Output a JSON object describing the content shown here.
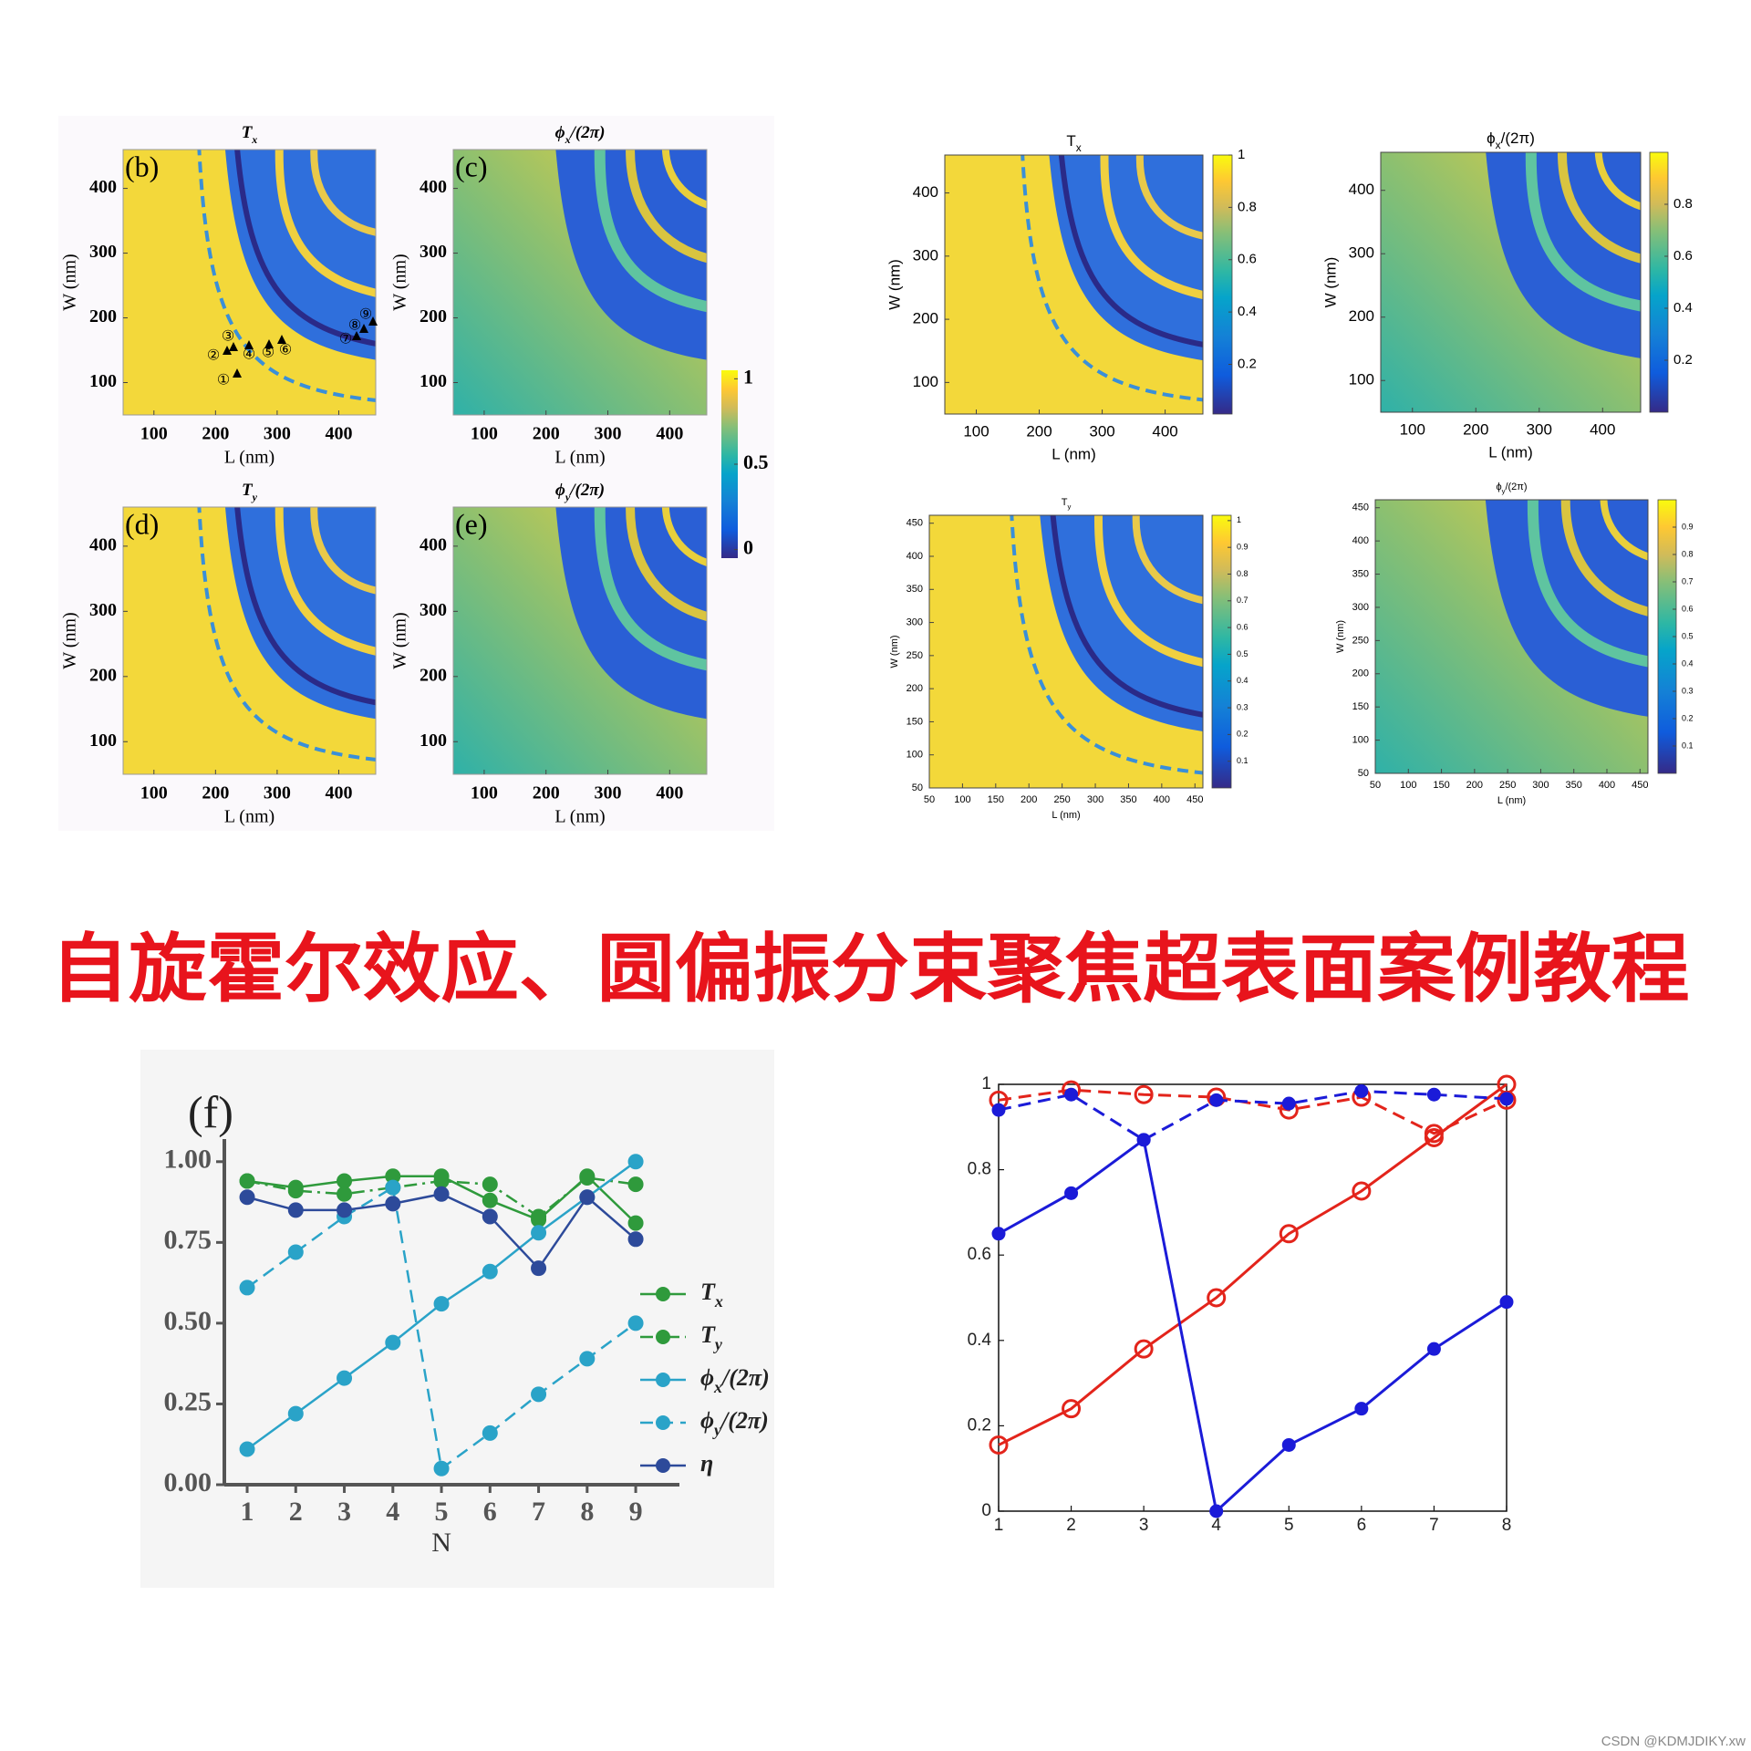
{
  "banner": "自旋霍尔效应、圆偏振分束聚焦超表面案例教程",
  "watermark": "CSDN @KDMJDIKY.xw",
  "chart_data": [
    {
      "type": "heatmap",
      "panel": "(b)",
      "title": "Tx",
      "xlabel": "L (nm)",
      "ylabel": "W (nm)",
      "xlim": [
        50,
        460
      ],
      "ylim": [
        50,
        460
      ],
      "xticks": [
        100,
        200,
        300,
        400
      ],
      "yticks": [
        100,
        200,
        300,
        400
      ],
      "annotations": [
        "①",
        "②",
        "③",
        "④",
        "⑤",
        "⑥",
        "⑦",
        "⑧",
        "⑨"
      ]
    },
    {
      "type": "heatmap",
      "panel": "(c)",
      "title": "ϕx/(2π)",
      "xlabel": "L (nm)",
      "ylabel": "W (nm)",
      "xlim": [
        50,
        460
      ],
      "ylim": [
        50,
        460
      ],
      "xticks": [
        100,
        200,
        300,
        400
      ],
      "yticks": [
        100,
        200,
        300,
        400
      ],
      "colorbar": {
        "colormap": "parula",
        "clim": [
          -0.05,
          1.05
        ],
        "ticks": [
          0,
          0.5,
          1
        ]
      }
    },
    {
      "type": "heatmap",
      "panel": "(d)",
      "title": "Ty",
      "xlabel": "L (nm)",
      "ylabel": "W (nm)",
      "xlim": [
        50,
        460
      ],
      "ylim": [
        50,
        460
      ],
      "xticks": [
        100,
        200,
        300,
        400
      ],
      "yticks": [
        100,
        200,
        300,
        400
      ]
    },
    {
      "type": "heatmap",
      "panel": "(e)",
      "title": "ϕy/(2π)",
      "xlabel": "L (nm)",
      "ylabel": "W (nm)",
      "xlim": [
        50,
        460
      ],
      "ylim": [
        50,
        460
      ],
      "xticks": [
        100,
        200,
        300,
        400
      ],
      "yticks": [
        100,
        200,
        300,
        400
      ]
    },
    {
      "type": "heatmap",
      "title": "Tx",
      "xlabel": "L (nm)",
      "ylabel": "W (nm)",
      "xlim": [
        50,
        460
      ],
      "ylim": [
        50,
        460
      ],
      "xticks": [
        100,
        200,
        300,
        400
      ],
      "yticks": [
        100,
        200,
        300,
        400
      ],
      "colorbar": {
        "colormap": "parula",
        "clim": [
          0.01,
          1
        ],
        "ticks": [
          0.2,
          0.4,
          0.6,
          0.8,
          1
        ]
      }
    },
    {
      "type": "heatmap",
      "title": "ϕx/(2π)",
      "xlabel": "L (nm)",
      "ylabel": "W (nm)",
      "xlim": [
        50,
        460
      ],
      "ylim": [
        50,
        460
      ],
      "xticks": [
        100,
        200,
        300,
        400
      ],
      "yticks": [
        100,
        200,
        300,
        400
      ],
      "colorbar": {
        "colormap": "parula",
        "clim": [
          0,
          1
        ],
        "ticks": [
          0.2,
          0.4,
          0.6,
          0.8
        ]
      }
    },
    {
      "type": "heatmap",
      "title": "Ty",
      "xlabel": "L (nm)",
      "ylabel": "W (nm)",
      "xlim": [
        50,
        462
      ],
      "ylim": [
        50,
        462
      ],
      "xticks": [
        50,
        100,
        150,
        200,
        250,
        300,
        350,
        400,
        450
      ],
      "yticks": [
        50,
        100,
        150,
        200,
        250,
        300,
        350,
        400,
        450
      ],
      "colorbar": {
        "colormap": "parula",
        "clim": [
          0,
          1.02
        ],
        "ticks": [
          0.1,
          0.2,
          0.3,
          0.4,
          0.5,
          0.6,
          0.7,
          0.8,
          0.9,
          1
        ]
      }
    },
    {
      "type": "heatmap",
      "title": "ϕy/(2π)",
      "xlabel": "L (nm)",
      "ylabel": "W (nm)",
      "xlim": [
        50,
        462
      ],
      "ylim": [
        50,
        462
      ],
      "xticks": [
        50,
        100,
        150,
        200,
        250,
        300,
        350,
        400,
        450
      ],
      "yticks": [
        50,
        100,
        150,
        200,
        250,
        300,
        350,
        400,
        450
      ],
      "colorbar": {
        "colormap": "parula",
        "clim": [
          0,
          1
        ],
        "ticks": [
          0.1,
          0.2,
          0.3,
          0.4,
          0.5,
          0.6,
          0.7,
          0.8,
          0.9
        ]
      }
    },
    {
      "type": "line",
      "panel": "(f)",
      "xlabel": "N",
      "x": [
        1,
        2,
        3,
        4,
        5,
        6,
        7,
        8,
        9
      ],
      "xlim": [
        0.53,
        9.9
      ],
      "ylim": [
        0,
        1.07
      ],
      "xticks": [
        1,
        2,
        3,
        4,
        5,
        6,
        7,
        8,
        9
      ],
      "yticks": [
        {
          "value": 0,
          "label": "0.00"
        },
        {
          "value": 0.25,
          "label": "0.25"
        },
        {
          "value": 0.5,
          "label": "0.50"
        },
        {
          "value": 0.75,
          "label": "0.75"
        },
        {
          "value": 1,
          "label": "1.00"
        }
      ],
      "legend": true,
      "series": [
        {
          "name": "Tx",
          "color": "#2f9a3c",
          "linestyle": "solid",
          "values": [
            0.94,
            0.92,
            0.94,
            0.955,
            0.955,
            0.88,
            0.82,
            0.955,
            0.81
          ]
        },
        {
          "name": "Ty",
          "color": "#2f9a3c",
          "linestyle": "dashdot",
          "values": [
            0.94,
            0.91,
            0.9,
            0.92,
            0.94,
            0.93,
            0.83,
            0.95,
            0.93
          ]
        },
        {
          "name": "ϕx/(2π)",
          "color": "#2aa3c8",
          "linestyle": "solid",
          "values": [
            0.11,
            0.22,
            0.33,
            0.44,
            0.56,
            0.66,
            0.78,
            0.89,
            1.0
          ]
        },
        {
          "name": "ϕy/(2π)",
          "color": "#2aa3c8",
          "linestyle": "dashed",
          "values": [
            0.61,
            0.72,
            0.83,
            0.92,
            0.05,
            0.16,
            0.28,
            0.39,
            0.5
          ]
        },
        {
          "name": "η",
          "color": "#2d4a9a",
          "linestyle": "solid",
          "values": [
            0.89,
            0.85,
            0.85,
            0.87,
            0.9,
            0.83,
            0.67,
            0.89,
            0.76
          ]
        }
      ]
    },
    {
      "type": "line",
      "x": [
        1,
        2,
        3,
        4,
        5,
        6,
        7,
        8
      ],
      "xlim": [
        1,
        8
      ],
      "ylim": [
        0,
        1
      ],
      "xticks": [
        1,
        2,
        3,
        4,
        5,
        6,
        7,
        8
      ],
      "yticks": [
        0,
        0.2,
        0.4,
        0.6,
        0.8,
        1
      ],
      "series": [
        {
          "color": "#e3241b",
          "linestyle": "solid",
          "marker": "open",
          "values": [
            0.155,
            0.24,
            0.38,
            0.5,
            0.65,
            0.75,
            0.875,
            1.0
          ]
        },
        {
          "color": "#1b1bd8",
          "linestyle": "solid",
          "marker": "filled",
          "values": [
            0.65,
            0.745,
            0.87,
            0,
            0.155,
            0.24,
            0.38,
            0.49
          ]
        },
        {
          "color": "#e3241b",
          "linestyle": "dashed",
          "marker": "open",
          "values": [
            0.963,
            0.987,
            0.976,
            0.97,
            0.94,
            0.97,
            0.885,
            0.963
          ]
        },
        {
          "color": "#1b1bd8",
          "linestyle": "dashed",
          "marker": "filled",
          "values": [
            0.94,
            0.976,
            0.87,
            0.963,
            0.955,
            0.984,
            0.976,
            0.966
          ]
        }
      ]
    }
  ]
}
